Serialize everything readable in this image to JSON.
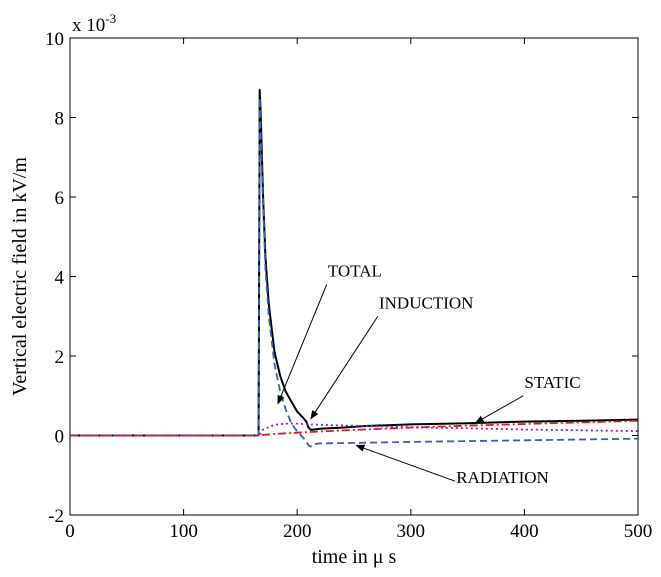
{
  "chart_data": {
    "type": "line",
    "title": "",
    "xlabel": "time  in   μ s",
    "ylabel": "Vertical electric field  in  kV/m",
    "y_multiplier": "x 10",
    "y_multiplier_exponent": "-3",
    "xlim": [
      0,
      500
    ],
    "ylim": [
      -2,
      10
    ],
    "x_ticks": [
      0,
      100,
      200,
      300,
      400,
      500
    ],
    "x_tick_labels": [
      "0",
      "100",
      "200",
      "300",
      "400",
      "500"
    ],
    "y_ticks": [
      -2,
      0,
      2,
      4,
      6,
      8,
      10
    ],
    "y_tick_labels": [
      "-2",
      "0",
      "2",
      "4",
      "6",
      "8",
      "10"
    ],
    "grid": false,
    "series": [
      {
        "name": "TOTAL",
        "color": "#000000",
        "dash": "solid",
        "points": [
          [
            0,
            0
          ],
          [
            166,
            0
          ],
          [
            167,
            8.7
          ],
          [
            168,
            8.0
          ],
          [
            170,
            6.0
          ],
          [
            172,
            4.5
          ],
          [
            175,
            3.3
          ],
          [
            180,
            2.1
          ],
          [
            185,
            1.5
          ],
          [
            190,
            1.1
          ],
          [
            195,
            0.85
          ],
          [
            200,
            0.6
          ],
          [
            205,
            0.45
          ],
          [
            208,
            0.35
          ],
          [
            210,
            0.2
          ],
          [
            212,
            0.14
          ],
          [
            215,
            0.15
          ],
          [
            220,
            0.17
          ],
          [
            240,
            0.2
          ],
          [
            260,
            0.24
          ],
          [
            300,
            0.28
          ],
          [
            350,
            0.31
          ],
          [
            400,
            0.35
          ],
          [
            450,
            0.37
          ],
          [
            500,
            0.4
          ]
        ]
      },
      {
        "name": "RADIATION",
        "color": "#3a5fb8",
        "dash": "dashed",
        "points": [
          [
            0,
            0
          ],
          [
            166,
            0
          ],
          [
            167,
            8.5
          ],
          [
            168,
            7.5
          ],
          [
            170,
            5.8
          ],
          [
            172,
            4.2
          ],
          [
            175,
            3.0
          ],
          [
            180,
            1.8
          ],
          [
            185,
            1.1
          ],
          [
            190,
            0.65
          ],
          [
            195,
            0.3
          ],
          [
            200,
            0.1
          ],
          [
            205,
            -0.05
          ],
          [
            208,
            -0.15
          ],
          [
            210,
            -0.25
          ],
          [
            212,
            -0.28
          ],
          [
            215,
            -0.22
          ],
          [
            220,
            -0.2
          ],
          [
            260,
            -0.18
          ],
          [
            300,
            -0.16
          ],
          [
            400,
            -0.12
          ],
          [
            450,
            -0.1
          ],
          [
            500,
            -0.08
          ]
        ]
      },
      {
        "name": "INDUCTION",
        "color": "#a020a0",
        "dash": "dotted",
        "points": [
          [
            0,
            0
          ],
          [
            166,
            0
          ],
          [
            168,
            0.05
          ],
          [
            170,
            0.15
          ],
          [
            180,
            0.27
          ],
          [
            190,
            0.3
          ],
          [
            200,
            0.3
          ],
          [
            210,
            0.28
          ],
          [
            230,
            0.26
          ],
          [
            260,
            0.24
          ],
          [
            300,
            0.21
          ],
          [
            350,
            0.18
          ],
          [
            400,
            0.15
          ],
          [
            450,
            0.13
          ],
          [
            500,
            0.11
          ]
        ]
      },
      {
        "name": "STATIC",
        "color": "#d02020",
        "dash": "dashdot",
        "points": [
          [
            0,
            0
          ],
          [
            166,
            0
          ],
          [
            168,
            0.01
          ],
          [
            180,
            0.04
          ],
          [
            200,
            0.07
          ],
          [
            220,
            0.1
          ],
          [
            250,
            0.14
          ],
          [
            300,
            0.2
          ],
          [
            350,
            0.25
          ],
          [
            400,
            0.29
          ],
          [
            450,
            0.33
          ],
          [
            500,
            0.37
          ]
        ]
      }
    ],
    "annotations": [
      {
        "text": "TOTAL",
        "label_at": [
          227,
          4.0
        ],
        "arrow_from": [
          226,
          3.8
        ],
        "arrow_to": [
          183,
          0.8
        ]
      },
      {
        "text": "INDUCTION",
        "label_at": [
          272,
          3.2
        ],
        "arrow_from": [
          271,
          3.0
        ],
        "arrow_to": [
          212,
          0.42
        ]
      },
      {
        "text": "STATIC",
        "label_at": [
          400,
          1.2
        ],
        "arrow_from": [
          399,
          1.0
        ],
        "arrow_to": [
          357,
          0.32
        ]
      },
      {
        "text": "RADIATION",
        "label_at": [
          340,
          -1.2
        ],
        "arrow_from": [
          339,
          -1.15
        ],
        "arrow_to": [
          252,
          -0.25
        ]
      }
    ]
  }
}
